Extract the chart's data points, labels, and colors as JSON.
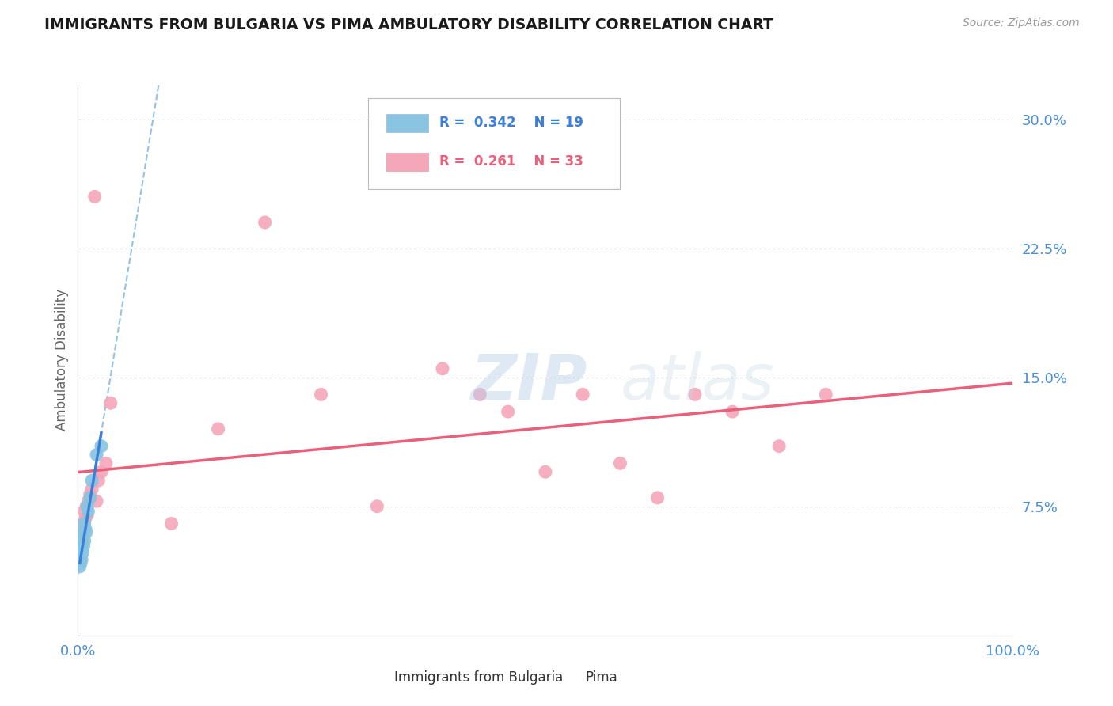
{
  "title": "IMMIGRANTS FROM BULGARIA VS PIMA AMBULATORY DISABILITY CORRELATION CHART",
  "source": "Source: ZipAtlas.com",
  "ylabel": "Ambulatory Disability",
  "r_blue": 0.342,
  "n_blue": 19,
  "r_pink": 0.261,
  "n_pink": 33,
  "xmin": 0.0,
  "xmax": 1.0,
  "ymin": 0.0,
  "ymax": 0.32,
  "yticks": [
    0.0,
    0.075,
    0.15,
    0.225,
    0.3
  ],
  "ytick_labels": [
    "",
    "7.5%",
    "15.0%",
    "22.5%",
    "30.0%"
  ],
  "xticks": [
    0.0,
    0.25,
    0.5,
    0.75,
    1.0
  ],
  "xtick_labels": [
    "0.0%",
    "",
    "",
    "",
    "100.0%"
  ],
  "blue_color": "#89c4e1",
  "pink_color": "#f4a7b9",
  "blue_line_color": "#3a7fd9",
  "pink_line_color": "#e8607a",
  "dashed_line_color": "#7ab3e0",
  "blue_points_x": [
    0.002,
    0.003,
    0.003,
    0.004,
    0.004,
    0.005,
    0.005,
    0.006,
    0.006,
    0.007,
    0.007,
    0.008,
    0.009,
    0.01,
    0.011,
    0.013,
    0.015,
    0.02,
    0.025
  ],
  "blue_points_y": [
    0.04,
    0.042,
    0.046,
    0.044,
    0.05,
    0.048,
    0.055,
    0.052,
    0.06,
    0.055,
    0.065,
    0.062,
    0.06,
    0.075,
    0.072,
    0.08,
    0.09,
    0.105,
    0.11
  ],
  "pink_points_x": [
    0.003,
    0.004,
    0.005,
    0.006,
    0.007,
    0.008,
    0.009,
    0.01,
    0.011,
    0.013,
    0.015,
    0.018,
    0.02,
    0.022,
    0.025,
    0.03,
    0.035,
    0.1,
    0.15,
    0.2,
    0.26,
    0.32,
    0.39,
    0.43,
    0.46,
    0.5,
    0.54,
    0.58,
    0.62,
    0.66,
    0.7,
    0.75,
    0.8
  ],
  "pink_points_y": [
    0.06,
    0.062,
    0.058,
    0.065,
    0.072,
    0.068,
    0.075,
    0.07,
    0.078,
    0.082,
    0.085,
    0.255,
    0.078,
    0.09,
    0.095,
    0.1,
    0.135,
    0.065,
    0.12,
    0.24,
    0.14,
    0.075,
    0.155,
    0.14,
    0.13,
    0.095,
    0.14,
    0.1,
    0.08,
    0.14,
    0.13,
    0.11,
    0.14
  ]
}
